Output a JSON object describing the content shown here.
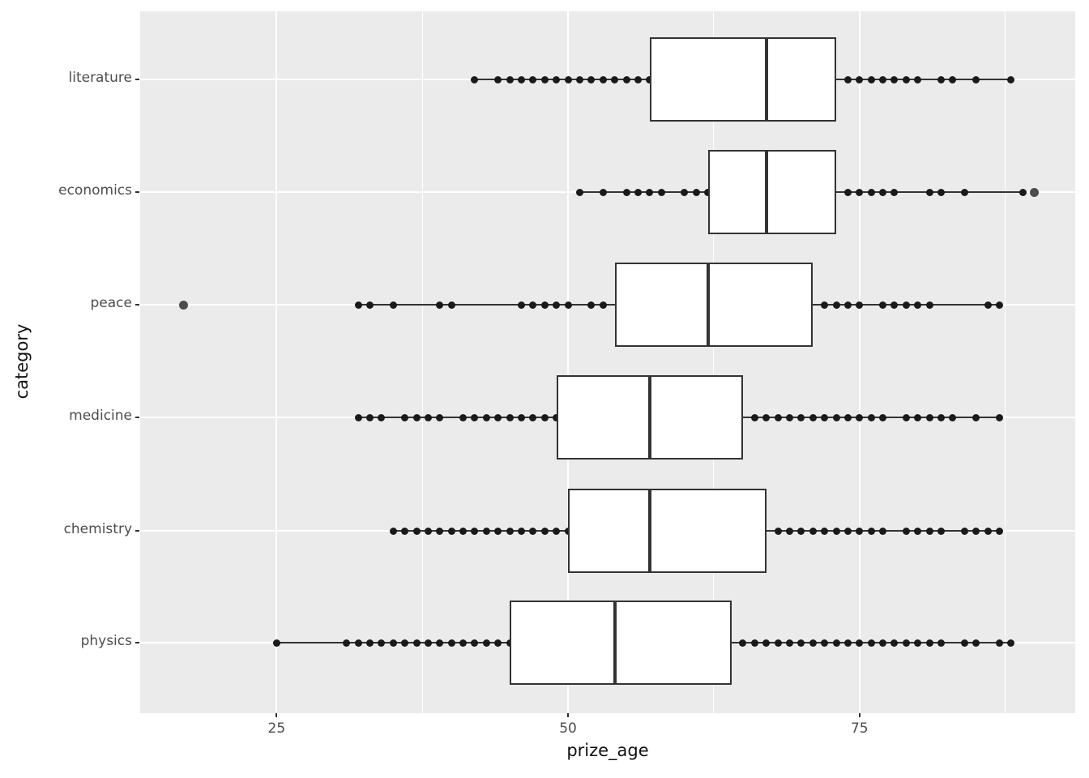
{
  "chart_data": {
    "type": "boxplot",
    "orientation": "horizontal",
    "title": "",
    "xlabel": "prize_age",
    "ylabel": "category",
    "legend": "none",
    "grid": "on",
    "panel_background": "#EBEBEB",
    "gridline_color": "#FFFFFF",
    "box_stroke_color": "#333333",
    "box_fill_color": "#FFFFFF",
    "point_color": "#1A1A1A",
    "outlier_color": "#4D4D4D",
    "tick_text_color": "#4D4D4D",
    "x_axis": {
      "domain": [
        13.3,
        93.5
      ],
      "major_ticks": [
        25,
        50,
        75
      ],
      "tick_labels": [
        "25",
        "50",
        "75"
      ],
      "minor_gridlines": [
        37.5,
        62.5,
        87.5
      ]
    },
    "categories": [
      "literature",
      "economics",
      "peace",
      "medicine",
      "chemistry",
      "physics"
    ],
    "series": [
      {
        "category": "literature",
        "whisker_min": 42,
        "q1": 57,
        "median": 67,
        "q3": 73,
        "whisker_max": 88,
        "points": [
          42,
          44,
          45,
          46,
          47,
          48,
          49,
          50,
          51,
          52,
          53,
          54,
          55,
          56,
          57,
          74,
          75,
          76,
          77,
          78,
          79,
          80,
          82,
          83,
          85,
          88
        ],
        "outliers": []
      },
      {
        "category": "economics",
        "whisker_min": 51,
        "q1": 62,
        "median": 67,
        "q3": 73,
        "whisker_max": 89,
        "points": [
          51,
          53,
          55,
          56,
          57,
          58,
          60,
          61,
          62,
          74,
          75,
          76,
          77,
          78,
          81,
          82,
          84,
          89
        ],
        "outliers": [
          90
        ]
      },
      {
        "category": "peace",
        "whisker_min": 32,
        "q1": 54,
        "median": 62,
        "q3": 71,
        "whisker_max": 87,
        "points": [
          32,
          33,
          35,
          39,
          40,
          46,
          47,
          48,
          49,
          50,
          52,
          53,
          72,
          73,
          74,
          75,
          77,
          78,
          79,
          80,
          81,
          86,
          87
        ],
        "outliers": [
          17
        ]
      },
      {
        "category": "medicine",
        "whisker_min": 32,
        "q1": 49,
        "median": 57,
        "q3": 65,
        "whisker_max": 87,
        "points": [
          32,
          33,
          34,
          36,
          37,
          38,
          39,
          41,
          42,
          43,
          44,
          45,
          46,
          47,
          48,
          49,
          66,
          67,
          68,
          69,
          70,
          71,
          72,
          73,
          74,
          75,
          76,
          77,
          79,
          80,
          81,
          82,
          83,
          85,
          87
        ],
        "outliers": []
      },
      {
        "category": "chemistry",
        "whisker_min": 35,
        "q1": 50,
        "median": 57,
        "q3": 67,
        "whisker_max": 87,
        "points": [
          35,
          36,
          37,
          38,
          39,
          40,
          41,
          42,
          43,
          44,
          45,
          46,
          47,
          48,
          49,
          50,
          68,
          69,
          70,
          71,
          72,
          73,
          74,
          75,
          76,
          77,
          79,
          80,
          81,
          82,
          84,
          85,
          86,
          87
        ],
        "outliers": []
      },
      {
        "category": "physics",
        "whisker_min": 25,
        "q1": 45,
        "median": 54,
        "q3": 64,
        "whisker_max": 88,
        "points": [
          25,
          31,
          32,
          33,
          34,
          35,
          36,
          37,
          38,
          39,
          40,
          41,
          42,
          43,
          44,
          45,
          65,
          66,
          67,
          68,
          69,
          70,
          71,
          72,
          73,
          74,
          75,
          76,
          77,
          78,
          79,
          80,
          81,
          82,
          84,
          85,
          87,
          88
        ],
        "outliers": []
      }
    ]
  }
}
